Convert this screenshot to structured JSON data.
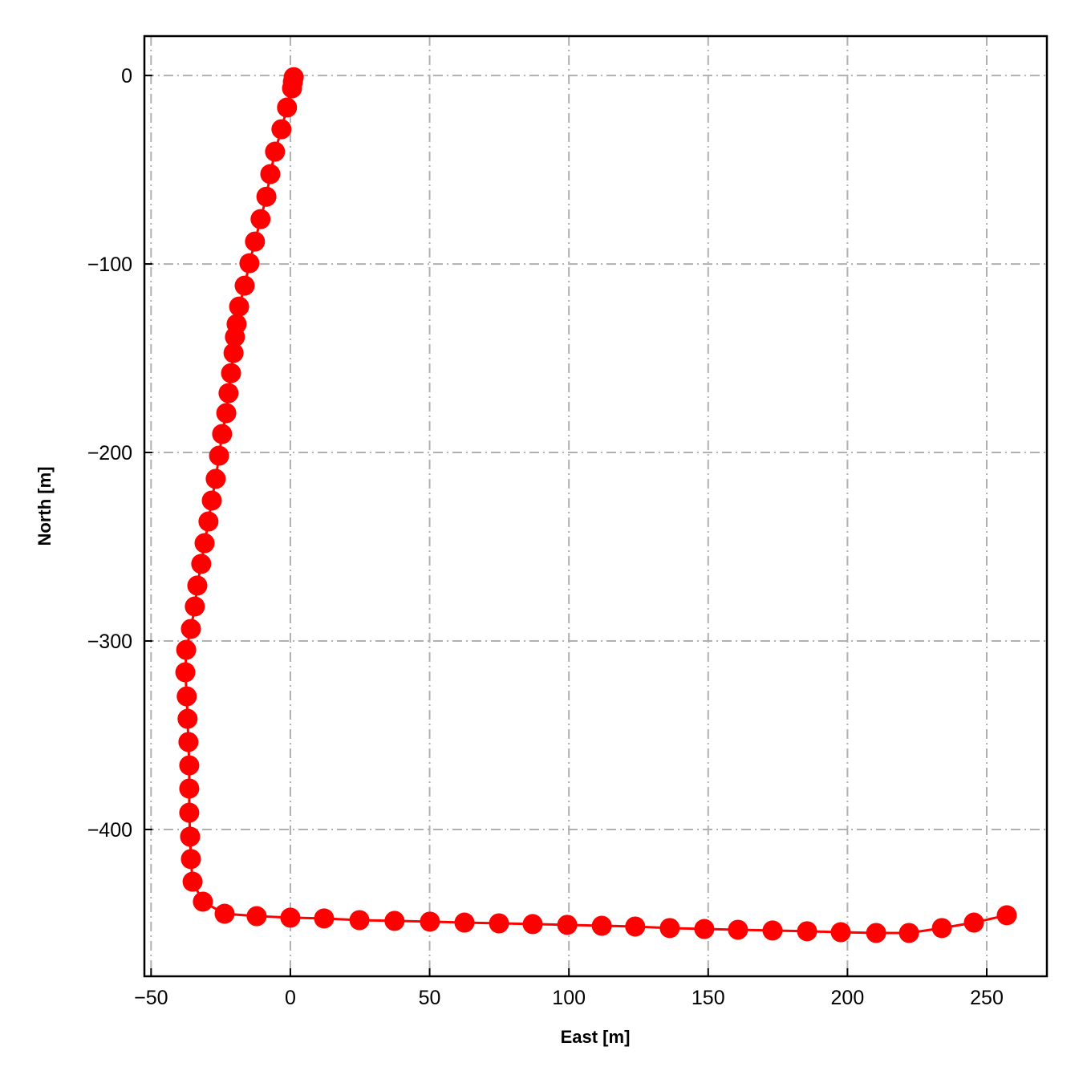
{
  "chart_data": {
    "type": "line",
    "xlabel": "East [m]",
    "ylabel": "North [m]",
    "xlim": [
      -52.4,
      271.6
    ],
    "ylim": [
      -477.9,
      20.9
    ],
    "xticks": [
      -50,
      0,
      50,
      100,
      150,
      200,
      250
    ],
    "yticks": [
      0,
      -100,
      -200,
      -300,
      -400
    ],
    "xtick_labels": [
      "−50",
      "0",
      "50",
      "100",
      "150",
      "200",
      "250"
    ],
    "ytick_labels": [
      "0",
      "−100",
      "−200",
      "−300",
      "−400"
    ],
    "grid": true,
    "grid_style": "dashdot",
    "series_color": "#ff0000",
    "grid_color": "#b0b0b0",
    "marker": "circle",
    "x": [
      1.2,
      0.9,
      0.6,
      -1.2,
      -3.2,
      -5.5,
      -7.2,
      -8.6,
      -10.7,
      -12.7,
      -14.7,
      -16.4,
      -18.4,
      -19.3,
      -19.9,
      -20.4,
      -21.3,
      -22.2,
      -23.0,
      -24.5,
      -25.6,
      -26.8,
      -28.2,
      -29.4,
      -30.8,
      -32.0,
      -33.4,
      -34.3,
      -35.7,
      -37.4,
      -37.7,
      -37.2,
      -36.9,
      -36.6,
      -36.3,
      -36.3,
      -36.3,
      -36.0,
      -35.7,
      -35.1,
      -31.4,
      -23.6,
      -12.1,
      0.0,
      12.1,
      24.8,
      37.4,
      50.1,
      62.5,
      74.9,
      87.0,
      99.4,
      111.8,
      123.8,
      136.2,
      148.6,
      160.7,
      173.1,
      185.5,
      197.6,
      210.3,
      222.1,
      233.9,
      245.4,
      257.2
    ],
    "y": [
      -0.9,
      -3.4,
      -6.8,
      -17.0,
      -28.5,
      -40.4,
      -52.3,
      -64.3,
      -76.2,
      -88.1,
      -99.6,
      -111.5,
      -122.6,
      -131.9,
      -138.7,
      -147.2,
      -157.9,
      -168.5,
      -179.1,
      -190.2,
      -201.7,
      -214.0,
      -225.5,
      -236.6,
      -248.1,
      -259.1,
      -270.6,
      -281.7,
      -293.6,
      -304.7,
      -316.6,
      -329.4,
      -341.3,
      -353.6,
      -366.0,
      -378.3,
      -391.1,
      -403.8,
      -415.7,
      -427.7,
      -438.3,
      -444.7,
      -446.0,
      -446.8,
      -447.2,
      -448.1,
      -448.5,
      -448.9,
      -449.4,
      -449.8,
      -450.2,
      -450.6,
      -451.1,
      -451.5,
      -452.3,
      -452.8,
      -453.2,
      -453.6,
      -454.0,
      -454.5,
      -454.9,
      -454.9,
      -452.3,
      -449.4,
      -445.5
    ]
  }
}
